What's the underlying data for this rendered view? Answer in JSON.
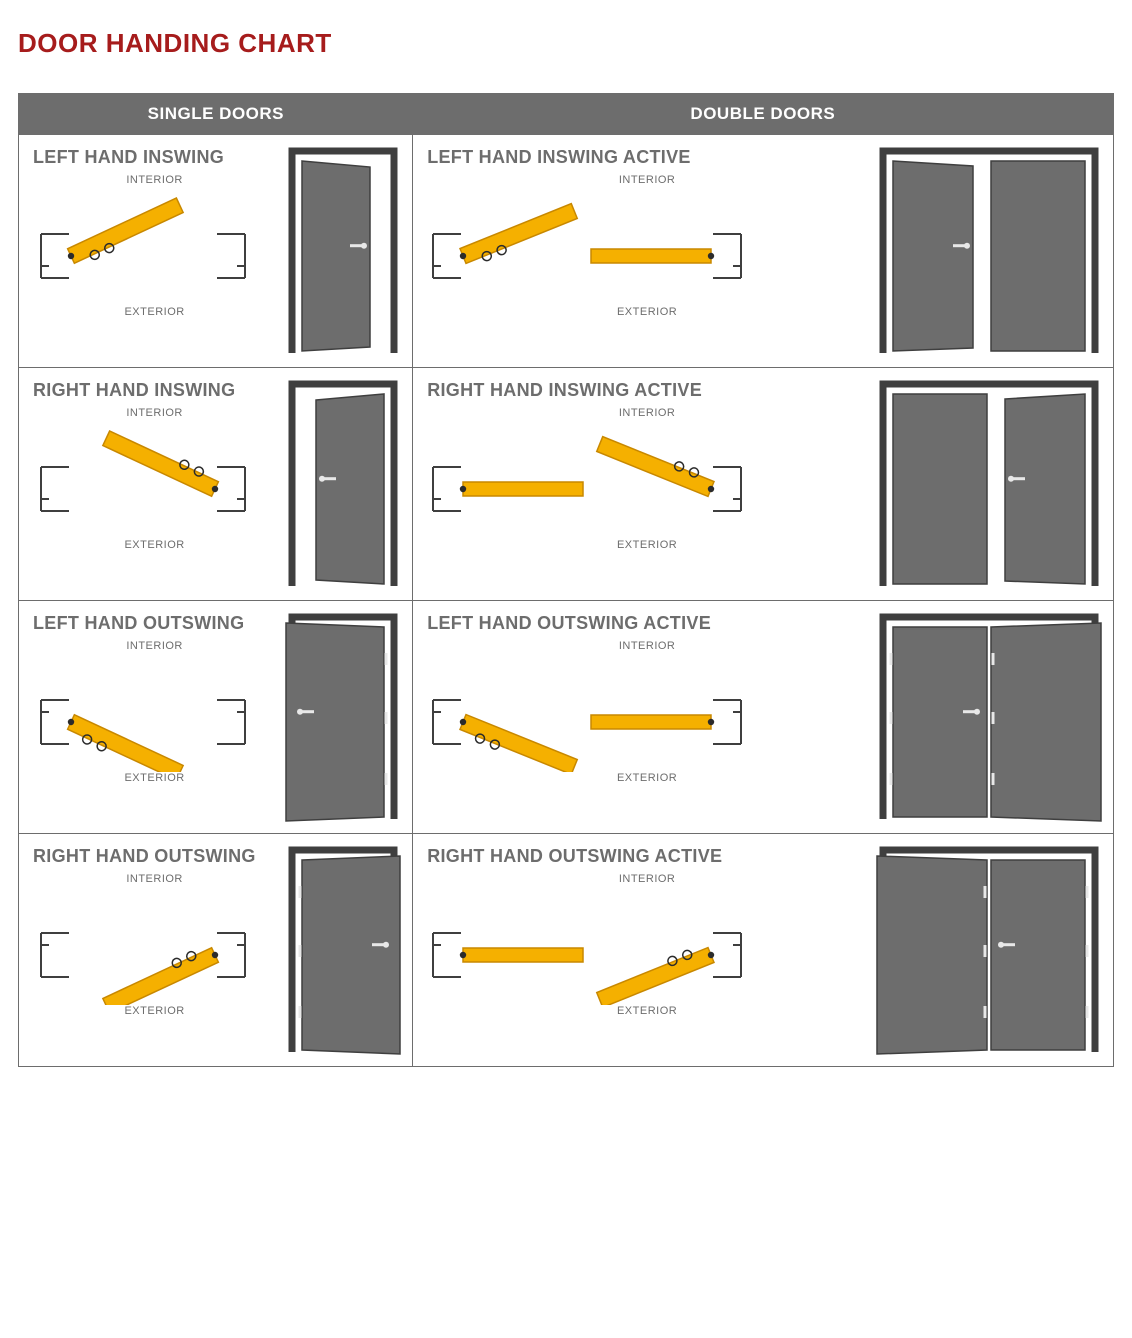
{
  "page_title": "DOOR HANDING CHART",
  "header": {
    "single": "SINGLE DOORS",
    "double": "DOUBLE DOORS"
  },
  "labels": {
    "interior": "INTERIOR",
    "exterior": "EXTERIOR"
  },
  "colors": {
    "title": "#a61c1c",
    "header_bg": "#6d6d6d",
    "header_fg": "#ffffff",
    "text": "#6d6d6d",
    "border": "#6d6d6d",
    "door_fill": "#6d6d6d",
    "door_edge": "#3f3f3f",
    "frame_stroke": "#3f3f3f",
    "handle": "#e8e8e8",
    "plan_door": "#f5b000",
    "plan_door_edge": "#c88800",
    "plan_frame": "#3f3f3f",
    "hinge": "#2b2b2b"
  },
  "style": {
    "title_fontsize": 26,
    "cell_title_fontsize": 18,
    "header_fontsize": 17,
    "ie_fontsize": 11,
    "plan_frame_stroke_w": 2,
    "door_stroke_w": 1.5,
    "plan_door_stroke_w": 1.5,
    "elev_single_w": 110,
    "elev_single_h": 210,
    "elev_double_w": 220,
    "elev_double_h": 210
  },
  "rows": [
    {
      "single": {
        "title": "LEFT HAND INSWING",
        "hinge": "left",
        "swing": "in",
        "active": "left"
      },
      "double": {
        "title": "LEFT HAND INSWING ACTIVE",
        "hinge": "left",
        "swing": "in",
        "active": "left"
      }
    },
    {
      "single": {
        "title": "RIGHT HAND INSWING",
        "hinge": "right",
        "swing": "in",
        "active": "right"
      },
      "double": {
        "title": "RIGHT HAND INSWING ACTIVE",
        "hinge": "right",
        "swing": "in",
        "active": "right"
      }
    },
    {
      "single": {
        "title": "LEFT HAND OUTSWING",
        "hinge": "left",
        "swing": "out",
        "active": "left"
      },
      "double": {
        "title": "LEFT HAND OUTSWING ACTIVE",
        "hinge": "left",
        "swing": "out",
        "active": "left"
      }
    },
    {
      "single": {
        "title": "RIGHT HAND OUTSWING",
        "hinge": "right",
        "swing": "out",
        "active": "right"
      },
      "double": {
        "title": "RIGHT HAND OUTSWING ACTIVE",
        "hinge": "right",
        "swing": "out",
        "active": "right"
      }
    }
  ]
}
